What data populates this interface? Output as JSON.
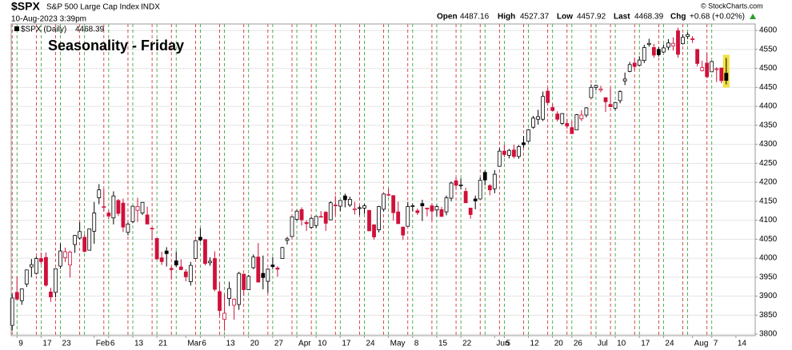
{
  "chart_data": {
    "type": "candlestick",
    "title": "$SPX",
    "subtitle": "S&P 500 Large Cap Index",
    "exchange": "INDX",
    "timestamp": "10-Aug-2023 3:39pm",
    "quote_labels": {
      "open": "Open",
      "high": "High",
      "low": "Low",
      "last": "Last",
      "chg": "Chg"
    },
    "change": "+0.68 (+0.02%)",
    "change_color": "#2e9e2e",
    "credit": "© StockCharts.com",
    "legend_label": "$SPX (Daily)",
    "annotation": "Seasonality - Friday",
    "annotation_color": "#1a1adb",
    "up_color": "#000000",
    "down_color": "#d0103a",
    "highlight_color": "#f0e040",
    "monday_line_color": "#2a9a2a",
    "friday_line_color": "#d02020",
    "grid": true,
    "xlim": [
      -0.2,
      154
    ],
    "ylim": [
      3796,
      4617
    ],
    "yticks": [
      3800,
      3850,
      3900,
      3950,
      4000,
      4050,
      4100,
      4150,
      4200,
      4250,
      4300,
      4350,
      4400,
      4450,
      4500,
      4550,
      4600
    ],
    "xticks": [
      {
        "value": 1,
        "label": "9"
      },
      {
        "value": 6,
        "label": "17"
      },
      {
        "value": 10,
        "label": "23"
      },
      {
        "value": 17,
        "label": "Feb"
      },
      {
        "value": 20,
        "label": "6"
      },
      {
        "value": 25,
        "label": "13"
      },
      {
        "value": 30,
        "label": "21"
      },
      {
        "value": 36,
        "label": "Mar"
      },
      {
        "value": 39,
        "label": "6"
      },
      {
        "value": 44,
        "label": "13"
      },
      {
        "value": 49,
        "label": "20"
      },
      {
        "value": 54,
        "label": "27"
      },
      {
        "value": 59,
        "label": "Apr"
      },
      {
        "value": 63,
        "label": "10"
      },
      {
        "value": 68,
        "label": "17"
      },
      {
        "value": 73,
        "label": "24"
      },
      {
        "value": 78,
        "label": "May"
      },
      {
        "value": 83,
        "label": "8"
      },
      {
        "value": 88,
        "label": "15"
      },
      {
        "value": 93,
        "label": "22"
      },
      {
        "value": 100,
        "label": "Jun"
      },
      {
        "value": 102,
        "label": "5"
      },
      {
        "value": 107,
        "label": "12"
      },
      {
        "value": 112,
        "label": "20"
      },
      {
        "value": 116,
        "label": "26"
      },
      {
        "value": 121,
        "label": "Jul"
      },
      {
        "value": 125,
        "label": "10"
      },
      {
        "value": 130,
        "label": "17"
      },
      {
        "value": 135,
        "label": "24"
      },
      {
        "value": 141,
        "label": "Aug"
      },
      {
        "value": 145,
        "label": "7"
      },
      {
        "value": 150,
        "label": "14"
      }
    ],
    "open": [
      3823,
      3910,
      3888,
      3932,
      3977,
      3960,
      3999,
      4002,
      3911,
      3910,
      3979,
      4001,
      3982,
      4036,
      4053,
      4055,
      4021,
      4071,
      4159,
      4136,
      4119,
      4106,
      4152,
      4145,
      4068,
      4096,
      4126,
      4119,
      4114,
      4077,
      4052,
      4001,
      4019,
      3973,
      3993,
      3977,
      3964,
      3938,
      3999,
      4055,
      4049,
      3988,
      3999,
      3912,
      3839,
      3894,
      3876,
      3878,
      3958,
      3917,
      3975,
      4003,
      3960,
      3939,
      3982,
      3974,
      3999,
      4047,
      4057,
      4102,
      4128,
      4094,
      4081,
      4086,
      4110,
      4121,
      4101,
      4140,
      4137,
      4164,
      4140,
      4130,
      4132,
      4132,
      4126,
      4088,
      4075,
      4129,
      4167,
      4165,
      4122,
      4082,
      4084,
      4137,
      4125,
      4144,
      4132,
      4138,
      4127,
      4128,
      4122,
      4158,
      4204,
      4191,
      4176,
      4132,
      4156,
      4156,
      4226,
      4191,
      4183,
      4242,
      4282,
      4271,
      4285,
      4268,
      4304,
      4308,
      4345,
      4366,
      4366,
      4440,
      4397,
      4380,
      4355,
      4355,
      4344,
      4338,
      4367,
      4377,
      4423,
      4450,
      4443,
      4423,
      4405,
      4395,
      4415,
      4467,
      4492,
      4514,
      4508,
      4521,
      4563,
      4555,
      4550,
      4543,
      4556,
      4559,
      4599,
      4565,
      4584,
      4578,
      4550,
      4494,
      4514,
      4491,
      4498,
      4501,
      4487.16
    ],
    "high": [
      3906,
      3951,
      3920,
      3970,
      3998,
      4004,
      4015,
      4015,
      3922,
      3973,
      4039,
      4028,
      4020,
      4061,
      4095,
      4063,
      4077,
      4148,
      4195,
      4182,
      4126,
      4176,
      4156,
      4157,
      4094,
      4138,
      4159,
      4148,
      4136,
      4081,
      4053,
      4017,
      4029,
      3978,
      4018,
      3997,
      3971,
      3990,
      4048,
      4079,
      4050,
      4002,
      4018,
      3935,
      3905,
      3938,
      3894,
      3964,
      3958,
      3956,
      4010,
      4040,
      4007,
      3973,
      4003,
      3979,
      4030,
      4056,
      4110,
      4127,
      4134,
      4100,
      4108,
      4110,
      4124,
      4124,
      4150,
      4164,
      4152,
      4170,
      4162,
      4148,
      4138,
      4143,
      4126,
      4089,
      4138,
      4170,
      4184,
      4165,
      4149,
      4083,
      4148,
      4143,
      4131,
      4154,
      4133,
      4143,
      4141,
      4135,
      4165,
      4202,
      4213,
      4210,
      4186,
      4133,
      4165,
      4213,
      4231,
      4195,
      4232,
      4290,
      4299,
      4288,
      4299,
      4298,
      4322,
      4340,
      4375,
      4391,
      4439,
      4448,
      4407,
      4387,
      4382,
      4367,
      4362,
      4380,
      4390,
      4398,
      4458,
      4457,
      4454,
      4423,
      4448,
      4412,
      4442,
      4489,
      4517,
      4528,
      4532,
      4562,
      4578,
      4565,
      4556,
      4563,
      4577,
      4582,
      4607,
      4590,
      4595,
      4585,
      4550,
      4520,
      4540,
      4520,
      4503,
      4502,
      4527.37
    ],
    "low": [
      3809,
      3890,
      3877,
      3924,
      3950,
      3957,
      3984,
      3925,
      3885,
      3897,
      3972,
      3990,
      3949,
      4014,
      4049,
      4015,
      4020,
      4038,
      4142,
      4123,
      4103,
      4089,
      4111,
      4069,
      4060,
      4092,
      4095,
      4114,
      4089,
      4047,
      3996,
      3982,
      3978,
      3944,
      3977,
      3968,
      3939,
      3928,
      3999,
      4044,
      3981,
      3980,
      3913,
      3847,
      3809,
      3874,
      3838,
      3864,
      3901,
      3917,
      3971,
      3936,
      3918,
      3909,
      3971,
      3951,
      3999,
      4036,
      4056,
      4098,
      4086,
      4072,
      4077,
      4079,
      4108,
      4072,
      4100,
      4113,
      4124,
      4134,
      4135,
      4115,
      4113,
      4117,
      4071,
      4049,
      4068,
      4123,
      4163,
      4099,
      4090,
      4048,
      4084,
      4123,
      4114,
      4098,
      4110,
      4099,
      4110,
      4109,
      4113,
      4150,
      4180,
      4181,
      4145,
      4104,
      4129,
      4155,
      4192,
      4166,
      4171,
      4242,
      4266,
      4263,
      4263,
      4262,
      4291,
      4305,
      4341,
      4352,
      4361,
      4407,
      4386,
      4360,
      4351,
      4341,
      4328,
      4338,
      4361,
      4371,
      4423,
      4442,
      4437,
      4385,
      4399,
      4389,
      4408,
      4456,
      4490,
      4494,
      4505,
      4514,
      4557,
      4528,
      4531,
      4541,
      4548,
      4547,
      4528,
      4563,
      4577,
      4567,
      4505,
      4492,
      4474,
      4491,
      4464,
      4461,
      4457.92
    ],
    "close": [
      3895,
      3892,
      3919,
      3969,
      3983,
      3999,
      3991,
      3929,
      3898,
      3972,
      4019,
      4017,
      4016,
      4060,
      4070,
      4018,
      4077,
      4119,
      4180,
      4136,
      4111,
      4164,
      4118,
      4082,
      4090,
      4137,
      4136,
      4147,
      4090,
      4079,
      3998,
      3991,
      4012,
      3970,
      3982,
      3970,
      3951,
      3981,
      4046,
      4048,
      3986,
      3992,
      3918,
      3862,
      3855,
      3920,
      3892,
      3960,
      3917,
      3952,
      4003,
      3937,
      3949,
      3971,
      3978,
      3971,
      4028,
      4051,
      4109,
      4124,
      4101,
      4091,
      4105,
      4110,
      4109,
      4092,
      4146,
      4138,
      4152,
      4154,
      4155,
      4130,
      4133,
      4138,
      4072,
      4056,
      4136,
      4169,
      4168,
      4120,
      4091,
      4061,
      4136,
      4138,
      4120,
      4138,
      4130,
      4124,
      4136,
      4110,
      4159,
      4198,
      4192,
      4193,
      4146,
      4115,
      4151,
      4205,
      4206,
      4180,
      4221,
      4282,
      4273,
      4284,
      4268,
      4294,
      4299,
      4338,
      4369,
      4373,
      4426,
      4410,
      4389,
      4366,
      4381,
      4348,
      4328,
      4378,
      4377,
      4396,
      4450,
      4455,
      4446,
      4412,
      4399,
      4410,
      4439,
      4472,
      4510,
      4505,
      4522,
      4555,
      4566,
      4535,
      4536,
      4554,
      4567,
      4566,
      4537,
      4582,
      4589,
      4577,
      4513,
      4502,
      4478,
      4518,
      4499,
      4467.71,
      4468.39
    ]
  }
}
